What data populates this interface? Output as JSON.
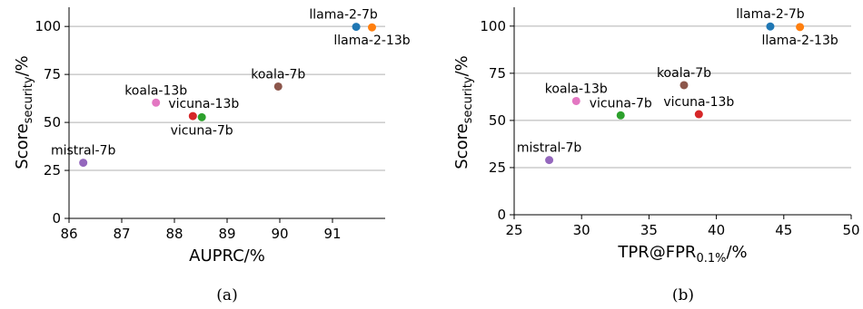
{
  "chart_data": [
    {
      "type": "scatter",
      "caption": "(a)",
      "xlabel": "AUPRC/%",
      "ylabel": {
        "main": "Score",
        "sub": "security",
        "suffix": "/%"
      },
      "xlim": [
        86,
        92
      ],
      "ylim": [
        0,
        110
      ],
      "xticks": [
        "86",
        "87",
        "88",
        "89",
        "90",
        "91"
      ],
      "yticks": [
        "0",
        "25",
        "50",
        "75",
        "100"
      ],
      "grid": "horizontal",
      "points": [
        {
          "label": "llama-2-7b",
          "x": 91.45,
          "y": 99.8,
          "color": "#1f77b4",
          "label_pos": "above-left"
        },
        {
          "label": "llama-2-13b",
          "x": 91.75,
          "y": 99.5,
          "color": "#ff7f0e",
          "label_pos": "below"
        },
        {
          "label": "koala-7b",
          "x": 89.97,
          "y": 68.7,
          "color": "#8c564b",
          "label_pos": "above"
        },
        {
          "label": "koala-13b",
          "x": 87.65,
          "y": 60.3,
          "color": "#e377c2",
          "label_pos": "above"
        },
        {
          "label": "vicuna-13b",
          "x": 88.35,
          "y": 53.3,
          "color": "#d62728",
          "label_pos": "above-right"
        },
        {
          "label": "vicuna-7b",
          "x": 88.52,
          "y": 52.7,
          "color": "#2ca02c",
          "label_pos": "below"
        },
        {
          "label": "mistral-7b",
          "x": 86.27,
          "y": 29.0,
          "color": "#9467bd",
          "label_pos": "above"
        }
      ]
    },
    {
      "type": "scatter",
      "caption": "(b)",
      "xlabel": {
        "main": "TPR@FPR",
        "sub": "0.1%",
        "suffix": "/%"
      },
      "ylabel": {
        "main": "Score",
        "sub": "security",
        "suffix": "/%"
      },
      "xlim": [
        25,
        50
      ],
      "ylim": [
        0,
        110
      ],
      "xticks": [
        "25",
        "30",
        "35",
        "40",
        "45",
        "50"
      ],
      "yticks": [
        "0",
        "25",
        "50",
        "75",
        "100"
      ],
      "grid": "horizontal",
      "points": [
        {
          "label": "llama-2-7b",
          "x": 44.0,
          "y": 99.8,
          "color": "#1f77b4",
          "label_pos": "above"
        },
        {
          "label": "llama-2-13b",
          "x": 46.2,
          "y": 99.5,
          "color": "#ff7f0e",
          "label_pos": "below"
        },
        {
          "label": "koala-7b",
          "x": 37.6,
          "y": 68.7,
          "color": "#8c564b",
          "label_pos": "above"
        },
        {
          "label": "koala-13b",
          "x": 29.6,
          "y": 60.3,
          "color": "#e377c2",
          "label_pos": "above"
        },
        {
          "label": "vicuna-7b",
          "x": 32.9,
          "y": 52.7,
          "color": "#2ca02c",
          "label_pos": "above"
        },
        {
          "label": "vicuna-13b",
          "x": 38.7,
          "y": 53.3,
          "color": "#d62728",
          "label_pos": "above"
        },
        {
          "label": "mistral-7b",
          "x": 27.6,
          "y": 29.0,
          "color": "#9467bd",
          "label_pos": "above"
        }
      ]
    }
  ]
}
